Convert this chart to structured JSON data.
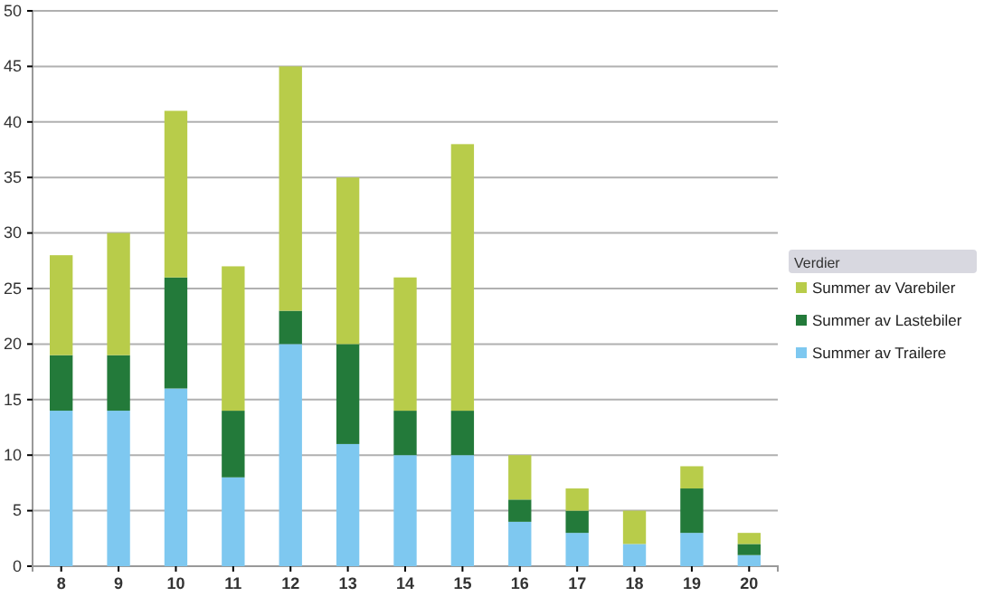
{
  "chart_data": {
    "type": "bar",
    "stacked": true,
    "legend_title": "Verdier",
    "legend": "right",
    "categories": [
      "8",
      "9",
      "10",
      "11",
      "12",
      "13",
      "14",
      "15",
      "16",
      "17",
      "18",
      "19",
      "20"
    ],
    "series": [
      {
        "name": "Summer av Trailere",
        "color": "#7ec8f0",
        "values": [
          14,
          14,
          16,
          8,
          20,
          11,
          10,
          10,
          4,
          3,
          2,
          3,
          1
        ]
      },
      {
        "name": "Summer av Lastebiler",
        "color": "#237a3a",
        "values": [
          5,
          5,
          10,
          6,
          3,
          9,
          4,
          4,
          2,
          2,
          0,
          4,
          1
        ]
      },
      {
        "name": "Summer av Varebiler",
        "color": "#b8cc4a",
        "values": [
          9,
          11,
          15,
          13,
          22,
          15,
          12,
          24,
          4,
          2,
          3,
          2,
          1
        ]
      }
    ],
    "ylim": [
      0,
      50
    ],
    "yticks": [
      0,
      5,
      10,
      15,
      20,
      25,
      30,
      35,
      40,
      45,
      50
    ],
    "grid": "y"
  }
}
